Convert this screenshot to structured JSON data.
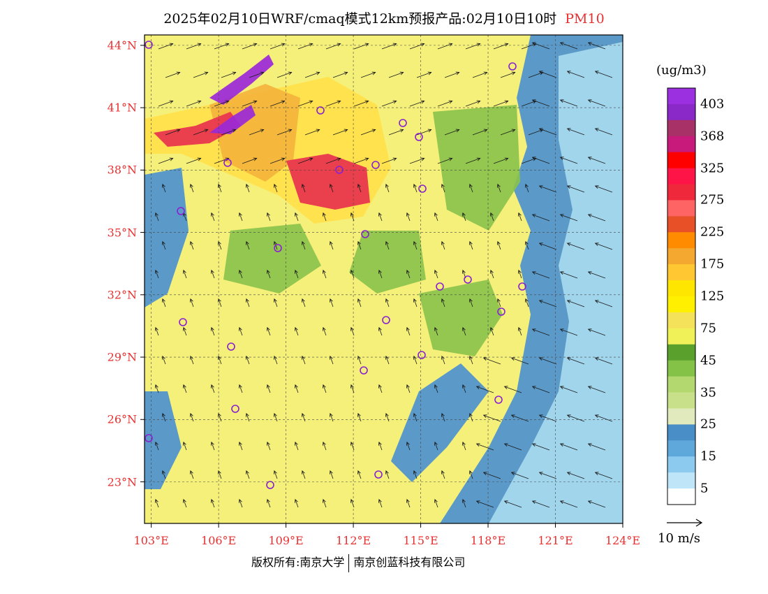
{
  "title": {
    "main": "2025年02月10日WRF/cmaq模式12km预报产品:02月10日10时",
    "pollutant": "PM10"
  },
  "map": {
    "lat_labels": [
      "44°N",
      "41°N",
      "38°N",
      "35°N",
      "32°N",
      "29°N",
      "26°N",
      "23°N"
    ],
    "lon_labels": [
      "103°E",
      "106°E",
      "109°E",
      "112°E",
      "115°E",
      "118°E",
      "121°E",
      "124°E"
    ],
    "lat_range": [
      21,
      44.5
    ],
    "lon_range": [
      102.7,
      124
    ],
    "pollution_zone_colors": [
      "#f5f07a",
      "#ffe14a",
      "#f4b43c",
      "#e8324e",
      "#9a28d8",
      "#8ac24a",
      "#4a90d0",
      "#a8dcf0"
    ]
  },
  "legend": {
    "unit": "(ug/m3)",
    "labels": [
      "403",
      "368",
      "325",
      "275",
      "225",
      "175",
      "125",
      "75",
      "45",
      "35",
      "25",
      "15",
      "5"
    ],
    "colors": [
      "#9b30e0",
      "#8a28c8",
      "#a83268",
      "#c81a7a",
      "#ff0000",
      "#ff1448",
      "#f0283c",
      "#ff6464",
      "#e85028",
      "#ff8c00",
      "#f4a830",
      "#ffc832",
      "#ffe600",
      "#fff000",
      "#f4e25a",
      "#f0f058",
      "#5aa02d",
      "#84c247",
      "#b4d870",
      "#c8e08a",
      "#e0eabc",
      "#4a8ec8",
      "#5fa8dc",
      "#8ccaf0",
      "#bfe6f8",
      "#ffffff"
    ]
  },
  "wind_reference": "10 m/s",
  "footer": {
    "left": "版权所有:南京大学",
    "right": "南京创蓝科技有限公司"
  }
}
